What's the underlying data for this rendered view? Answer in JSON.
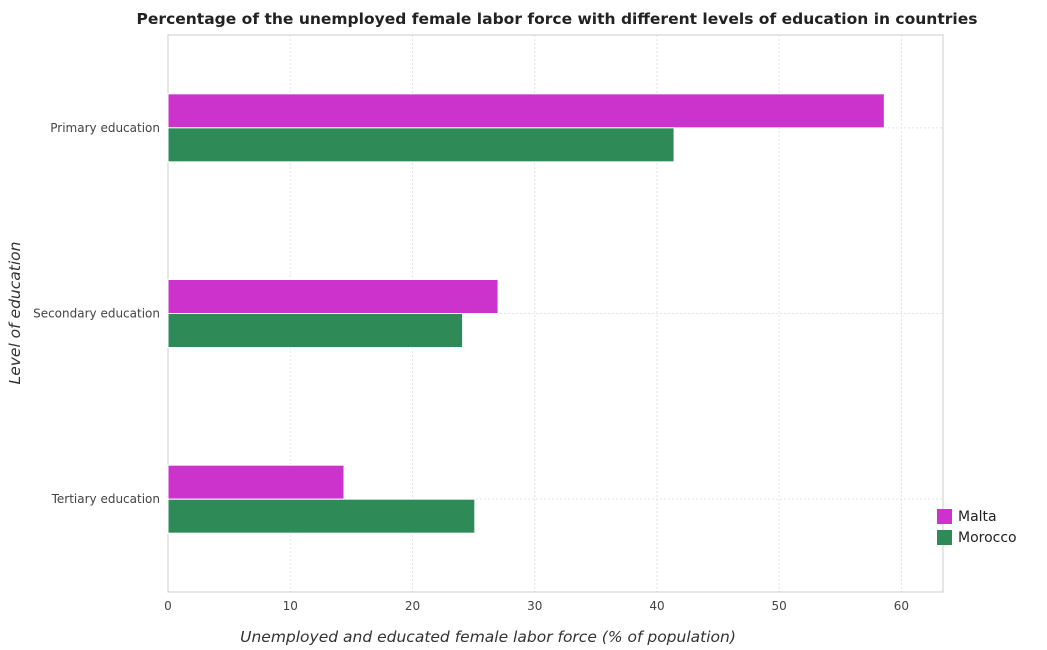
{
  "chart_data": {
    "type": "bar",
    "orientation": "horizontal",
    "title": "Percentage of the unemployed female labor force with different levels of education in countries",
    "xlabel": "Unemployed and educated female labor force (% of population)",
    "ylabel": "Level of education",
    "xlim": [
      0,
      63.4
    ],
    "xticks": [
      0,
      10,
      20,
      30,
      40,
      50,
      60
    ],
    "categories": [
      "Primary education",
      "Secondary education",
      "Tertiary education"
    ],
    "series": [
      {
        "name": "Malta",
        "color": "#cc33cc",
        "values": [
          58.6,
          27.0,
          14.4
        ]
      },
      {
        "name": "Morocco",
        "color": "#2e8b57",
        "values": [
          41.4,
          24.1,
          25.1
        ]
      }
    ],
    "grid": true,
    "legend_position": "bottom-right"
  }
}
